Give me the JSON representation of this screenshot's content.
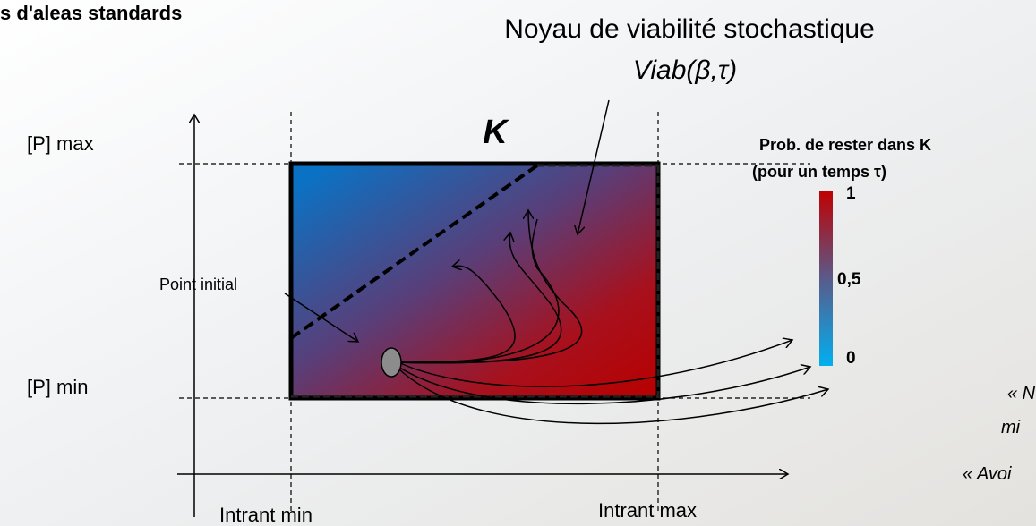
{
  "header": {
    "title": "s d'aleas standards"
  },
  "diagram": {
    "kernel_title": "Noyau de viabilité stochastique",
    "kernel_formula": "Viab(β,τ)",
    "set_label": "K",
    "y_max_label": "[P] max",
    "y_min_label": "[P] min",
    "initial_point_label": "Point initial",
    "x_min_label": "Intrant min",
    "x_max_label": "Intrant max"
  },
  "colorbar": {
    "title": "Prob. de rester dans K",
    "subtitle": "(pour un temps τ)",
    "labels": [
      "1",
      "0,5",
      "0"
    ]
  },
  "side_notes": [
    "« N",
    "mi",
    "« Avoi"
  ]
}
